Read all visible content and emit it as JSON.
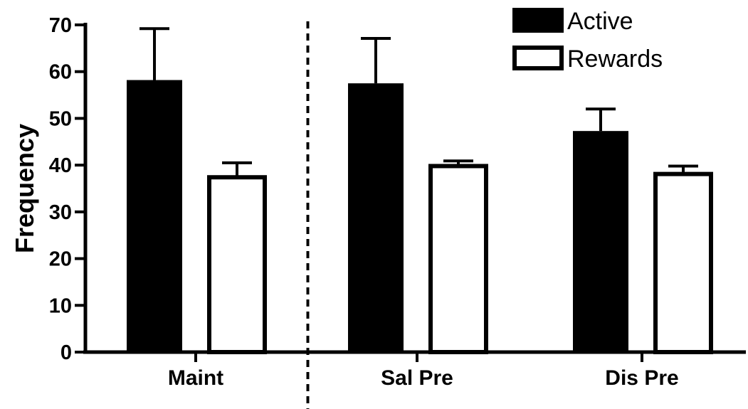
{
  "chart_data": {
    "type": "bar",
    "categories": [
      "Maint",
      "Sal Pre",
      "Dis Pre"
    ],
    "series": [
      {
        "name": "Active",
        "values": [
          58.2,
          57.5,
          47.3
        ],
        "errors": [
          11.0,
          9.6,
          4.7
        ],
        "fill": "#000000"
      },
      {
        "name": "Rewards",
        "values": [
          37.4,
          39.8,
          38.1
        ],
        "errors": [
          3.1,
          1.1,
          1.7
        ],
        "fill": "#ffffff"
      }
    ],
    "ylabel": "Frequency",
    "ylim": [
      0,
      70
    ],
    "yticks": [
      0,
      10,
      20,
      30,
      40,
      50,
      60,
      70
    ],
    "divider_after_category": 0,
    "legend_position": "top-right"
  }
}
